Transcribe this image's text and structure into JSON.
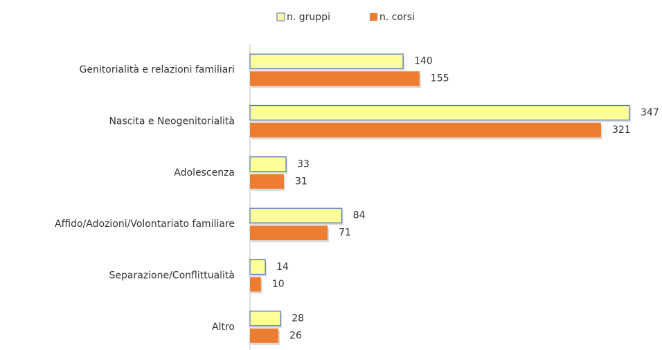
{
  "chart_data": {
    "type": "hbar",
    "categories": [
      "Genitorialità e relazioni familiari",
      "Nascita e Neogenitorialità",
      "Adolescenza",
      "Affido/Adozioni/Volontariato familiare",
      "Separazione/Conflittualità",
      "Altro"
    ],
    "series": [
      {
        "name": "n. gruppi",
        "color": "#ffff99",
        "edge": "#4a6fc0",
        "values": [
          140,
          347,
          33,
          84,
          14,
          28
        ]
      },
      {
        "name": "n. corsi",
        "color": "#ed7d31",
        "values": [
          155,
          321,
          31,
          71,
          10,
          26
        ]
      }
    ],
    "xlim": [
      0,
      347
    ],
    "legend": "top"
  }
}
